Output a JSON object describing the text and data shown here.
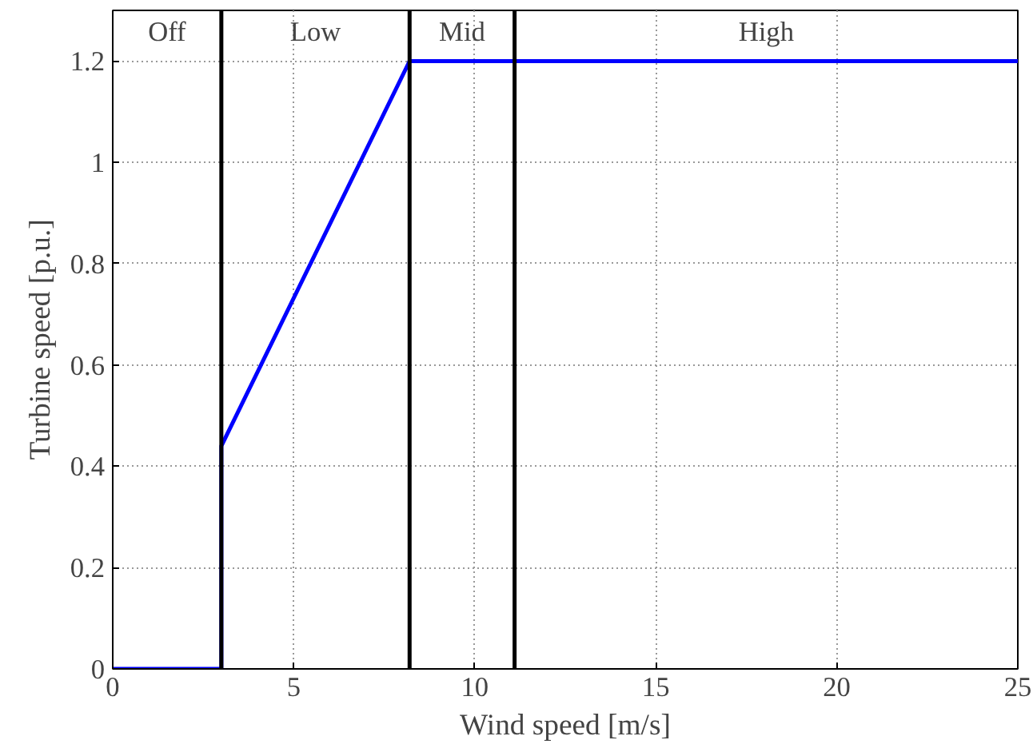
{
  "chart_data": {
    "type": "line",
    "xlabel": "Wind speed [m/s]",
    "ylabel": "Turbine speed [p.u.]",
    "x": [
      0,
      3,
      3,
      8.2,
      25
    ],
    "series": [
      {
        "color": "#0000ff",
        "values": [
          0,
          0,
          0.44,
          1.2,
          1.2
        ]
      }
    ],
    "xlim": [
      0,
      25
    ],
    "ylim": [
      0,
      1.3
    ],
    "xticks": [
      0,
      5,
      10,
      15,
      20,
      25
    ],
    "yticks": [
      0,
      0.2,
      0.4,
      0.6,
      0.8,
      1,
      1.2
    ],
    "grid": true,
    "line_style": "solid",
    "marker": "none",
    "ref_lines": [
      {
        "axis": "x",
        "value": 3,
        "color": "#000000"
      },
      {
        "axis": "x",
        "value": 8.2,
        "color": "#000000"
      },
      {
        "axis": "x",
        "value": 11.1,
        "color": "#000000"
      }
    ],
    "annotations": [
      "Off",
      "Low",
      "Mid",
      "High"
    ]
  }
}
